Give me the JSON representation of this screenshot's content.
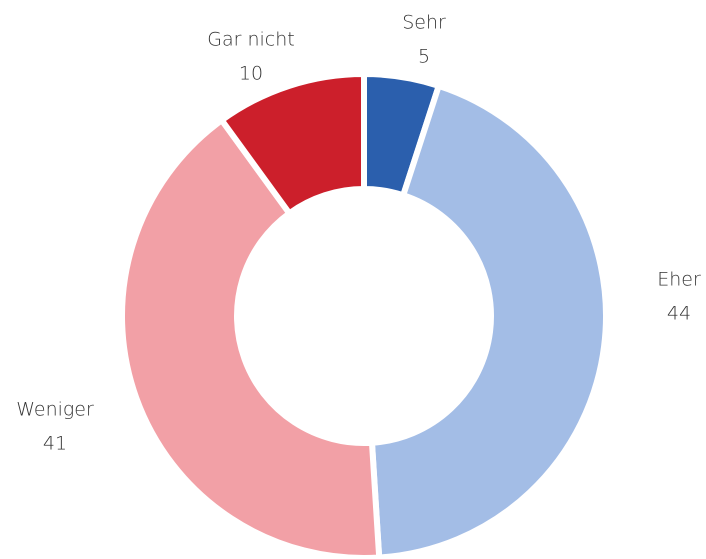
{
  "chart_data": {
    "type": "donut",
    "categories": [
      "Sehr",
      "Eher",
      "Weniger",
      "Gar nicht"
    ],
    "values": [
      5,
      44,
      41,
      10
    ],
    "colors": [
      "#2b5fad",
      "#a3bde6",
      "#f2a0a6",
      "#cc1f2b"
    ]
  }
}
